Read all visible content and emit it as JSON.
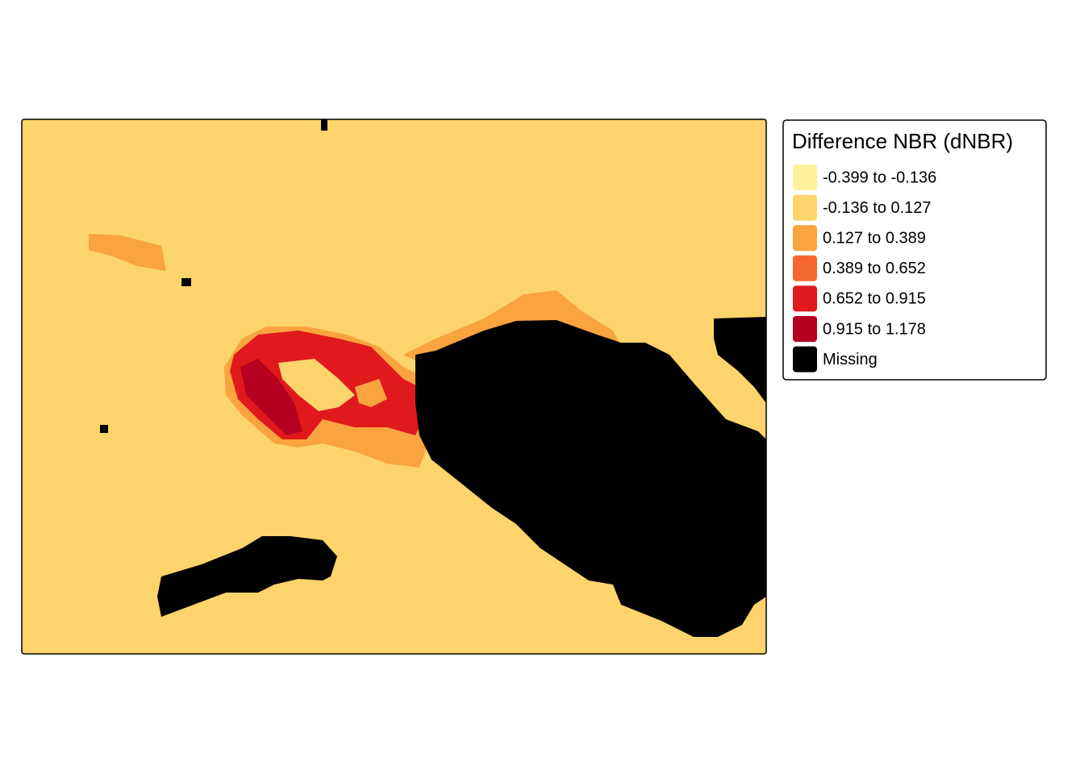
{
  "legend": {
    "title": "Difference NBR (dNBR)",
    "items": [
      {
        "label": "-0.399 to -0.136",
        "color": "#FEF19C"
      },
      {
        "label": "-0.136 to 0.127",
        "color": "#FCD46B"
      },
      {
        "label": "0.127 to 0.389",
        "color": "#F9A43F"
      },
      {
        "label": "0.389 to 0.652",
        "color": "#F4672F"
      },
      {
        "label": "0.652 to 0.915",
        "color": "#E0191D"
      },
      {
        "label": "0.915 to 1.178",
        "color": "#B5001F"
      },
      {
        "label": "Missing",
        "color": "#000000"
      }
    ]
  }
}
